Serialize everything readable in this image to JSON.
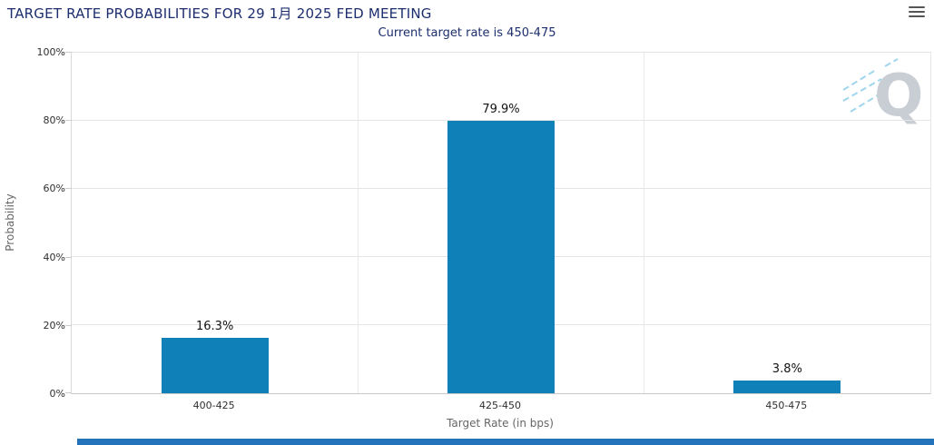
{
  "header": {
    "title": "TARGET RATE PROBABILITIES FOR 29 1月 2025 FED MEETING"
  },
  "subtitle": "Current target rate is 450-475",
  "chart_data": {
    "type": "bar",
    "title": "TARGET RATE PROBABILITIES FOR 29 1月 2025 FED MEETING",
    "subtitle": "Current target rate is 450-475",
    "categories": [
      "400-425",
      "425-450",
      "450-475"
    ],
    "values": [
      16.3,
      79.9,
      3.8
    ],
    "value_labels": [
      "16.3%",
      "79.9%",
      "3.8%"
    ],
    "xlabel": "Target Rate (in bps)",
    "ylabel": "Probability",
    "ylim": [
      0,
      100
    ],
    "yticks": [
      "0%",
      "20%",
      "40%",
      "60%",
      "80%",
      "100%"
    ],
    "grid": true,
    "legend": false,
    "bar_color": "#0f80b8"
  },
  "colors": {
    "title": "#1c2e6e",
    "bar": "#0f80b8",
    "bottom_bar": "#2373bb",
    "gridline": "#e4e4e4"
  },
  "watermark": "Q"
}
